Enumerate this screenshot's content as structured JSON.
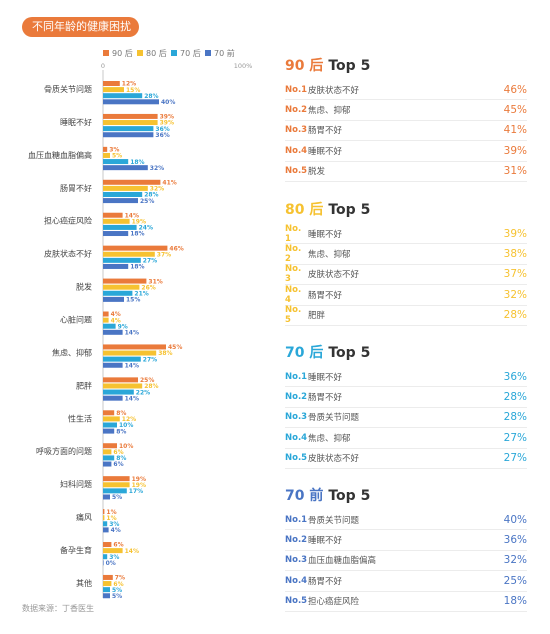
{
  "header": {
    "title": "不同年龄的健康困扰"
  },
  "source": "数据来源：丁香医生",
  "colors": {
    "g90": "#ea7a3b",
    "g80": "#f6c231",
    "g70": "#2aa7d8",
    "g70q": "#4a75c4"
  },
  "chart_data": {
    "type": "bar",
    "orientation": "horizontal",
    "legend_position": "top",
    "xlim": [
      0,
      100
    ],
    "x_axis_labels": [
      "0",
      "100%"
    ],
    "categories": [
      "骨质关节问题",
      "睡眠不好",
      "血压血糖血脂偏高",
      "肠胃不好",
      "担心癌症风险",
      "皮肤状态不好",
      "脱发",
      "心脏问题",
      "焦虑、抑郁",
      "肥胖",
      "性生活",
      "呼吸方面的问题",
      "妇科问题",
      "痛风",
      "备孕生育",
      "其他"
    ],
    "series": [
      {
        "name": "90 后",
        "color": "#ea7a3b",
        "values": [
          12,
          39,
          3,
          41,
          14,
          46,
          31,
          4,
          45,
          25,
          8,
          10,
          19,
          1,
          6,
          7
        ]
      },
      {
        "name": "80 后",
        "color": "#f6c231",
        "values": [
          15,
          39,
          5,
          32,
          19,
          37,
          26,
          4,
          38,
          28,
          12,
          6,
          19,
          1,
          14,
          6
        ]
      },
      {
        "name": "70 后",
        "color": "#2aa7d8",
        "values": [
          28,
          36,
          18,
          28,
          24,
          27,
          21,
          9,
          27,
          22,
          10,
          8,
          17,
          3,
          3,
          5
        ]
      },
      {
        "name": "70 前",
        "color": "#4a75c4",
        "values": [
          40,
          36,
          32,
          25,
          18,
          18,
          15,
          14,
          14,
          14,
          8,
          6,
          5,
          4,
          0,
          5
        ]
      }
    ]
  },
  "rankings": [
    {
      "generation": "90 后",
      "top": "Top 5",
      "color": "#ea7a3b",
      "items": [
        {
          "no": "No.1",
          "name": "皮肤状态不好",
          "pct": "46%"
        },
        {
          "no": "No.2",
          "name": "焦虑、抑郁",
          "pct": "45%"
        },
        {
          "no": "No.3",
          "name": "肠胃不好",
          "pct": "41%"
        },
        {
          "no": "No.4",
          "name": "睡眠不好",
          "pct": "39%"
        },
        {
          "no": "No.5",
          "name": "脱发",
          "pct": "31%"
        }
      ]
    },
    {
      "generation": "80 后",
      "top": "Top 5",
      "color": "#f6c231",
      "items": [
        {
          "no": "No. 1",
          "name": "睡眠不好",
          "pct": "39%"
        },
        {
          "no": "No. 2",
          "name": "焦虑、抑郁",
          "pct": "38%"
        },
        {
          "no": "No. 3",
          "name": "皮肤状态不好",
          "pct": "37%"
        },
        {
          "no": "No. 4",
          "name": "肠胃不好",
          "pct": "32%"
        },
        {
          "no": "No. 5",
          "name": "肥胖",
          "pct": "28%"
        }
      ]
    },
    {
      "generation": "70 后",
      "top": "Top 5",
      "color": "#2aa7d8",
      "items": [
        {
          "no": "No.1",
          "name": "睡眠不好",
          "pct": "36%"
        },
        {
          "no": "No.2",
          "name": "肠胃不好",
          "pct": "28%"
        },
        {
          "no": "No.3",
          "name": "骨质关节问题",
          "pct": "28%"
        },
        {
          "no": "No.4",
          "name": "焦虑、抑郁",
          "pct": "27%"
        },
        {
          "no": "No.5",
          "name": "皮肤状态不好",
          "pct": "27%"
        }
      ]
    },
    {
      "generation": "70 前",
      "top": "Top 5",
      "color": "#4a75c4",
      "items": [
        {
          "no": "No.1",
          "name": "骨质关节问题",
          "pct": "40%"
        },
        {
          "no": "No.2",
          "name": "睡眠不好",
          "pct": "36%"
        },
        {
          "no": "No.3",
          "name": "血压血糖血脂偏高",
          "pct": "32%"
        },
        {
          "no": "No.4",
          "name": "肠胃不好",
          "pct": "25%"
        },
        {
          "no": "No.5",
          "name": "担心癌症风险",
          "pct": "18%"
        }
      ]
    }
  ]
}
